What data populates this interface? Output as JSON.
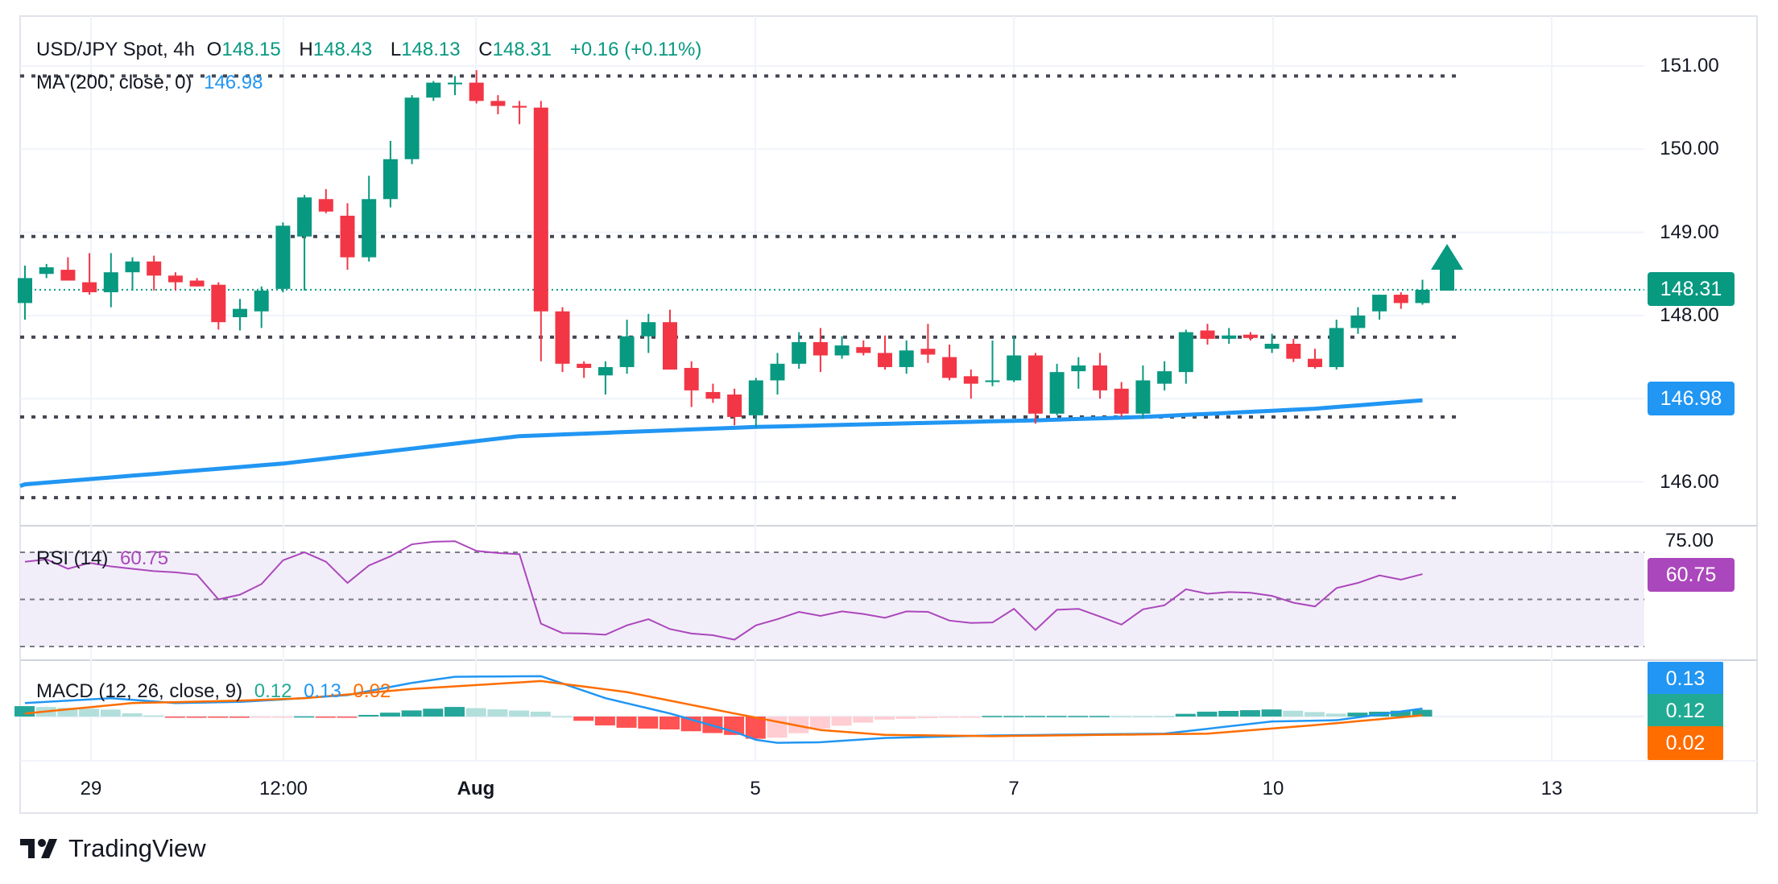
{
  "legend": {
    "symbol": "USD/JPY Spot, 4h",
    "o_label": "O",
    "o": "148.15",
    "h_label": "H",
    "h": "148.43",
    "l_label": "L",
    "l": "148.13",
    "c_label": "C",
    "c": "148.31",
    "change": "+0.16 (+0.11%)",
    "ma_label": "MA (200, close, 0)",
    "ma_value": "146.98",
    "rsi_label": "RSI (14)",
    "rsi_value": "60.75",
    "macd_label": "MACD (12, 26, close, 9)",
    "macd_hist": "0.12",
    "macd_value": "0.13",
    "macd_signal": "0.02"
  },
  "price_axis": [
    "151.00",
    "150.00",
    "149.00",
    "148.00",
    "146.00"
  ],
  "tags": {
    "last": "148.31",
    "ma": "146.98",
    "rsi_top": "75.00",
    "rsi": "60.75",
    "macd": "0.13",
    "hist": "0.12",
    "signal": "0.02"
  },
  "time_axis": [
    "29",
    "12:00",
    "Aug",
    "5",
    "7",
    "10",
    "13"
  ],
  "brand": "TradingView",
  "colors": {
    "up": "#089981",
    "down": "#f23645",
    "ma": "#2196f3",
    "rsi": "#ab47bc",
    "macd": "#2196f3",
    "signal": "#ff6d00"
  },
  "chart_data": {
    "type": "candlestick",
    "title": "USD/JPY Spot, 4h",
    "ylim": [
      145.6,
      151.2
    ],
    "levels": [
      150.88,
      148.95,
      147.74,
      146.78,
      145.81
    ],
    "last_price": 148.31,
    "ohlc": [
      [
        148.15,
        148.6,
        147.95,
        148.45
      ],
      [
        148.5,
        148.62,
        148.45,
        148.58
      ],
      [
        148.55,
        148.7,
        148.42,
        148.42
      ],
      [
        148.4,
        148.75,
        148.25,
        148.28
      ],
      [
        148.28,
        148.75,
        148.1,
        148.52
      ],
      [
        148.52,
        148.7,
        148.3,
        148.65
      ],
      [
        148.65,
        148.72,
        148.3,
        148.48
      ],
      [
        148.48,
        148.52,
        148.3,
        148.4
      ],
      [
        148.42,
        148.45,
        148.35,
        148.35
      ],
      [
        148.37,
        148.4,
        147.83,
        147.92
      ],
      [
        147.98,
        148.2,
        147.82,
        148.08
      ],
      [
        148.05,
        148.35,
        147.85,
        148.3
      ],
      [
        148.32,
        149.12,
        148.28,
        149.08
      ],
      [
        148.95,
        149.45,
        148.3,
        149.42
      ],
      [
        149.4,
        149.52,
        149.23,
        149.25
      ],
      [
        149.2,
        149.35,
        148.55,
        148.7
      ],
      [
        148.7,
        149.68,
        148.65,
        149.4
      ],
      [
        149.4,
        150.1,
        149.3,
        149.88
      ],
      [
        149.88,
        150.65,
        149.82,
        150.62
      ],
      [
        150.62,
        150.82,
        150.58,
        150.8
      ],
      [
        150.78,
        150.88,
        150.65,
        150.8
      ],
      [
        150.8,
        150.95,
        150.55,
        150.58
      ],
      [
        150.58,
        150.65,
        150.42,
        150.52
      ],
      [
        150.52,
        150.58,
        150.3,
        150.5
      ],
      [
        150.5,
        150.58,
        147.45,
        148.05
      ],
      [
        148.05,
        148.1,
        147.32,
        147.42
      ],
      [
        147.42,
        147.45,
        147.25,
        147.37
      ],
      [
        147.28,
        147.45,
        147.05,
        147.38
      ],
      [
        147.38,
        147.95,
        147.3,
        147.75
      ],
      [
        147.75,
        148.02,
        147.55,
        147.92
      ],
      [
        147.92,
        148.07,
        147.35,
        147.35
      ],
      [
        147.37,
        147.45,
        146.9,
        147.1
      ],
      [
        147.08,
        147.18,
        146.95,
        147.0
      ],
      [
        147.05,
        147.12,
        146.68,
        146.78
      ],
      [
        146.8,
        147.25,
        146.65,
        147.22
      ],
      [
        147.22,
        147.55,
        147.05,
        147.42
      ],
      [
        147.42,
        147.8,
        147.36,
        147.68
      ],
      [
        147.68,
        147.85,
        147.32,
        147.52
      ],
      [
        147.52,
        147.75,
        147.48,
        147.64
      ],
      [
        147.62,
        147.7,
        147.52,
        147.55
      ],
      [
        147.55,
        147.76,
        147.35,
        147.38
      ],
      [
        147.38,
        147.7,
        147.3,
        147.58
      ],
      [
        147.6,
        147.9,
        147.43,
        147.53
      ],
      [
        147.5,
        147.65,
        147.22,
        147.25
      ],
      [
        147.27,
        147.35,
        147.0,
        147.18
      ],
      [
        147.2,
        147.7,
        147.15,
        147.22
      ],
      [
        147.22,
        147.75,
        147.2,
        147.52
      ],
      [
        147.52,
        147.55,
        146.7,
        146.82
      ],
      [
        146.82,
        147.42,
        146.8,
        147.32
      ],
      [
        147.33,
        147.5,
        147.12,
        147.4
      ],
      [
        147.4,
        147.55,
        147.0,
        147.1
      ],
      [
        147.12,
        147.2,
        146.78,
        146.82
      ],
      [
        146.82,
        147.4,
        146.76,
        147.22
      ],
      [
        147.18,
        147.45,
        147.1,
        147.33
      ],
      [
        147.32,
        147.83,
        147.18,
        147.8
      ],
      [
        147.82,
        147.9,
        147.65,
        147.72
      ],
      [
        147.72,
        147.85,
        147.66,
        147.76
      ],
      [
        147.77,
        147.8,
        147.7,
        147.73
      ],
      [
        147.6,
        147.78,
        147.55,
        147.66
      ],
      [
        147.66,
        147.72,
        147.44,
        147.48
      ],
      [
        147.48,
        147.6,
        147.36,
        147.38
      ],
      [
        147.38,
        147.95,
        147.35,
        147.85
      ],
      [
        147.85,
        148.1,
        147.78,
        148.0
      ],
      [
        148.05,
        148.25,
        147.95,
        148.25
      ],
      [
        148.25,
        148.28,
        148.08,
        148.15
      ],
      [
        148.15,
        148.43,
        148.13,
        148.31
      ]
    ],
    "ma200_points": [
      [
        0,
        145.97
      ],
      [
        12,
        146.22
      ],
      [
        23,
        146.55
      ],
      [
        34,
        146.66
      ],
      [
        47,
        146.74
      ],
      [
        52,
        146.78
      ],
      [
        60,
        146.88
      ],
      [
        65,
        146.98
      ]
    ],
    "rsi": [
      66,
      67,
      63,
      65.5,
      64,
      63,
      62,
      61.5,
      60.5,
      50,
      52,
      56.5,
      66.6,
      70,
      66,
      57,
      64.4,
      68.3,
      73.4,
      74.5,
      74.7,
      70.6,
      69.7,
      69.2,
      39.7,
      35.7,
      35.5,
      35,
      39,
      41.6,
      37.4,
      35.5,
      34.8,
      32.9,
      39,
      41.6,
      44.7,
      43,
      44.9,
      43.8,
      42.2,
      44.9,
      44.7,
      41,
      40,
      40.2,
      46,
      37,
      45.6,
      46,
      42.7,
      39.3,
      45.8,
      47.5,
      54.3,
      52.4,
      53.1,
      52.8,
      51.5,
      48.6,
      47,
      54.8,
      57,
      60.2,
      58.4,
      60.75
    ],
    "rsi_levels": [
      70,
      50,
      30
    ],
    "macd_points": [
      [
        0,
        0.22
      ],
      [
        4,
        0.3
      ],
      [
        7,
        0.22
      ],
      [
        10,
        0.24
      ],
      [
        12,
        0.28
      ],
      [
        15,
        0.35
      ],
      [
        18,
        0.55
      ],
      [
        20,
        0.65
      ],
      [
        24,
        0.66
      ],
      [
        27,
        0.3
      ],
      [
        30,
        0.05
      ],
      [
        33,
        -0.25
      ],
      [
        34,
        -0.38
      ],
      [
        35,
        -0.43
      ],
      [
        37,
        -0.42
      ],
      [
        40,
        -0.35
      ],
      [
        45,
        -0.31
      ],
      [
        50,
        -0.29
      ],
      [
        53,
        -0.28
      ],
      [
        55,
        -0.2
      ],
      [
        58,
        -0.08
      ],
      [
        61,
        -0.06
      ],
      [
        65,
        0.13
      ]
    ],
    "signal_points": [
      [
        0,
        0.05
      ],
      [
        5,
        0.22
      ],
      [
        10,
        0.26
      ],
      [
        13,
        0.3
      ],
      [
        18,
        0.45
      ],
      [
        24,
        0.58
      ],
      [
        28,
        0.4
      ],
      [
        33,
        0.05
      ],
      [
        37,
        -0.22
      ],
      [
        40,
        -0.3
      ],
      [
        45,
        -0.32
      ],
      [
        50,
        -0.3
      ],
      [
        55,
        -0.28
      ],
      [
        60,
        -0.14
      ],
      [
        65,
        0.02
      ]
    ]
  }
}
